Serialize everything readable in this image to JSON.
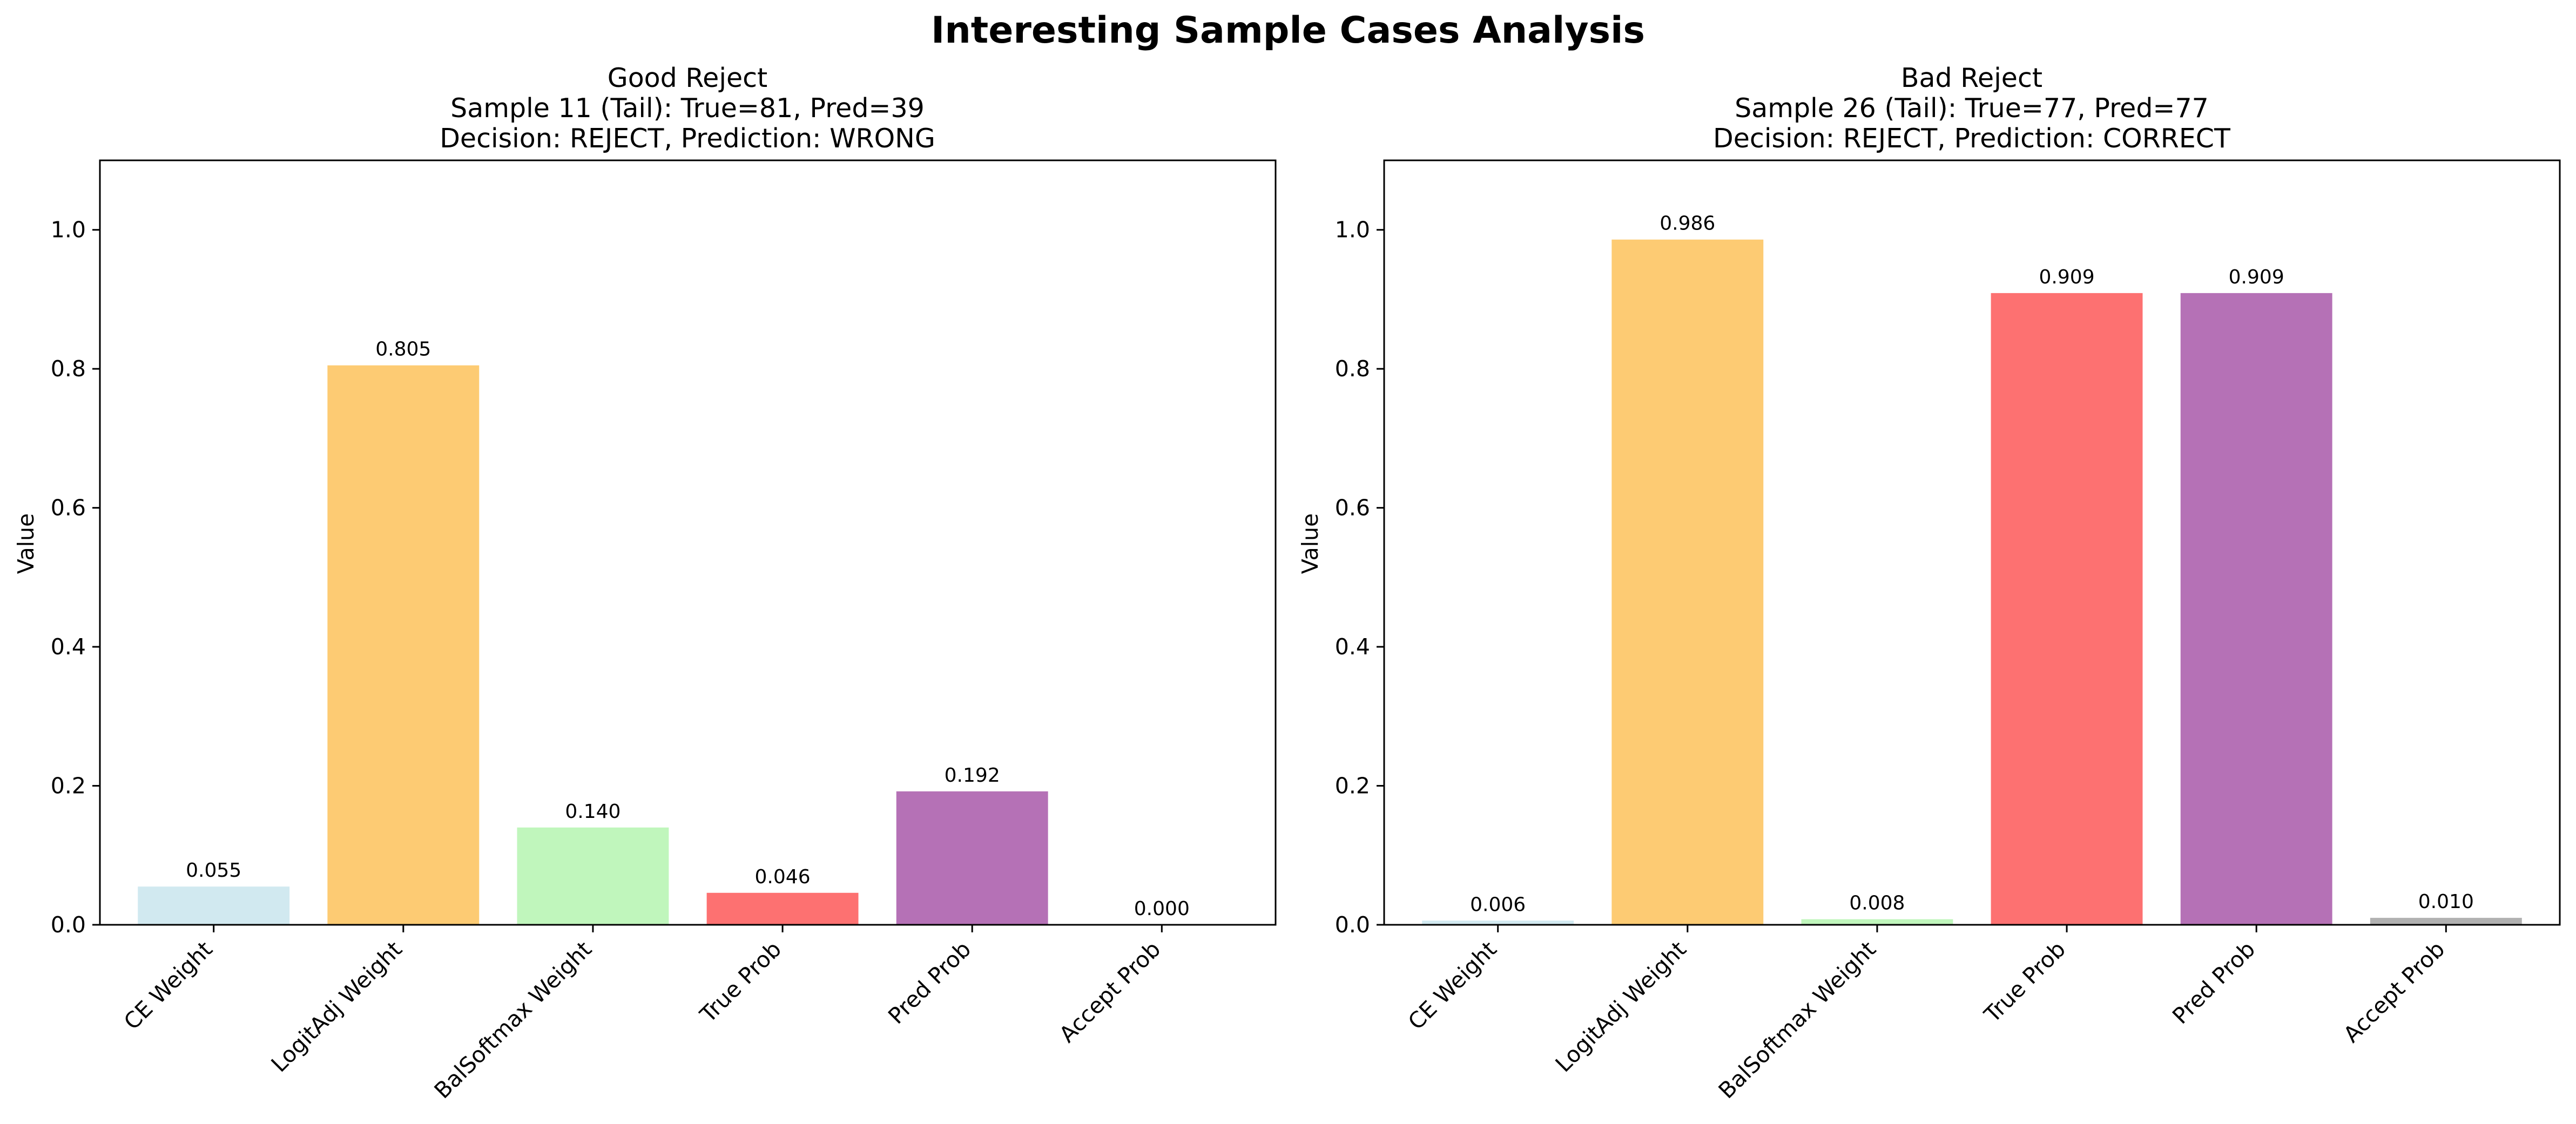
{
  "figure": {
    "suptitle": "Interesting Sample Cases Analysis"
  },
  "chart_data": [
    {
      "type": "bar",
      "title": "Good Reject",
      "subtitle_lines": [
        "Sample 11 (Tail): True=81, Pred=39",
        "Decision: REJECT, Prediction: WRONG"
      ],
      "xlabel": "",
      "ylabel": "Value",
      "ylim": [
        0,
        1.1
      ],
      "yticks": [
        "0.0",
        "0.2",
        "0.4",
        "0.6",
        "0.8",
        "1.0"
      ],
      "categories": [
        "CE Weight",
        "LogitAdj Weight",
        "BalSoftmax Weight",
        "True Prob",
        "Pred Prob",
        "Accept Prob"
      ],
      "values": [
        0.055,
        0.805,
        0.14,
        0.046,
        0.192,
        0.0
      ],
      "labels": [
        "0.055",
        "0.805",
        "0.140",
        "0.046",
        "0.192",
        "0.000"
      ],
      "colors": [
        "#c5e3ec",
        "#fdbe50",
        "#b0f4ab",
        "#fd4d4d",
        "#a34ea4",
        "#9d9d9d"
      ]
    },
    {
      "type": "bar",
      "title": "Bad Reject",
      "subtitle_lines": [
        "Sample 26 (Tail): True=77, Pred=77",
        "Decision: REJECT, Prediction: CORRECT"
      ],
      "xlabel": "",
      "ylabel": "Value",
      "ylim": [
        0,
        1.1
      ],
      "yticks": [
        "0.0",
        "0.2",
        "0.4",
        "0.6",
        "0.8",
        "1.0"
      ],
      "categories": [
        "CE Weight",
        "LogitAdj Weight",
        "BalSoftmax Weight",
        "True Prob",
        "Pred Prob",
        "Accept Prob"
      ],
      "values": [
        0.006,
        0.986,
        0.008,
        0.909,
        0.909,
        0.01
      ],
      "labels": [
        "0.006",
        "0.986",
        "0.008",
        "0.909",
        "0.909",
        "0.010"
      ],
      "colors": [
        "#c5e3ec",
        "#fdbe50",
        "#b0f4ab",
        "#fd4d4d",
        "#a34ea4",
        "#9d9d9d"
      ]
    }
  ]
}
